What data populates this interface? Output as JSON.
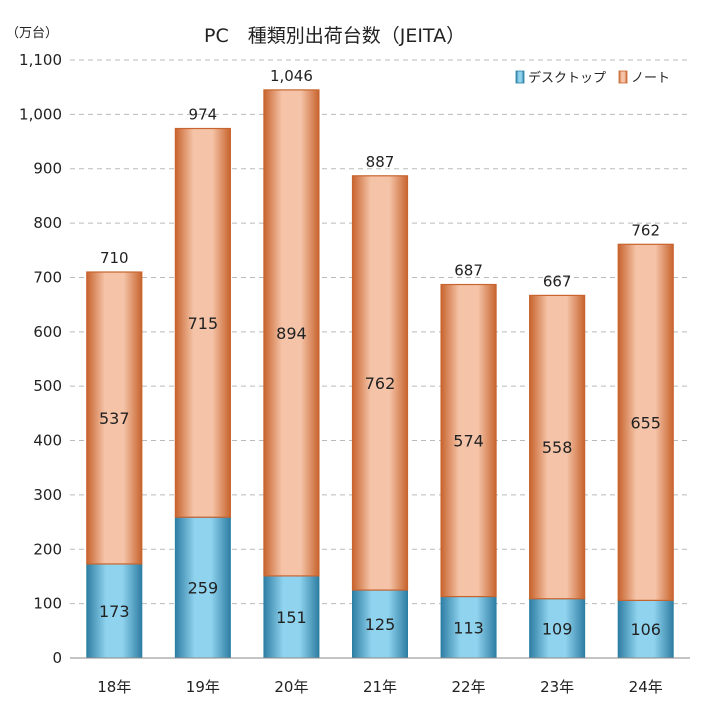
{
  "chart_data": {
    "type": "bar",
    "stacked": true,
    "title": "PC　種類別出荷台数（JEITA）",
    "unit_label": "（万台）",
    "categories": [
      "18年",
      "19年",
      "20年",
      "21年",
      "22年",
      "23年",
      "24年"
    ],
    "series": [
      {
        "name": "デスクトップ",
        "values": [
          173,
          259,
          151,
          125,
          113,
          109,
          106
        ]
      },
      {
        "name": "ノート",
        "values": [
          537,
          715,
          894,
          762,
          574,
          558,
          655
        ]
      }
    ],
    "totals": [
      710,
      974,
      1046,
      887,
      687,
      667,
      762
    ],
    "total_labels": [
      "710",
      "974",
      "1,046",
      "887",
      "687",
      "667",
      "762"
    ],
    "ylim": [
      0,
      1100
    ],
    "y_ticks": [
      0,
      100,
      200,
      300,
      400,
      500,
      600,
      700,
      800,
      900,
      1000,
      1100
    ],
    "y_tick_labels": [
      "0",
      "100",
      "200",
      "300",
      "400",
      "500",
      "600",
      "700",
      "800",
      "900",
      "1,000",
      "1,100"
    ],
    "grid": true,
    "legend_position": "top-right",
    "colors": {
      "desktop": "#5fb8d8",
      "desktop_edge": "#2a7fa3",
      "note": "#eda582",
      "note_edge": "#c8642e",
      "grid": "#bbbbbb"
    }
  }
}
